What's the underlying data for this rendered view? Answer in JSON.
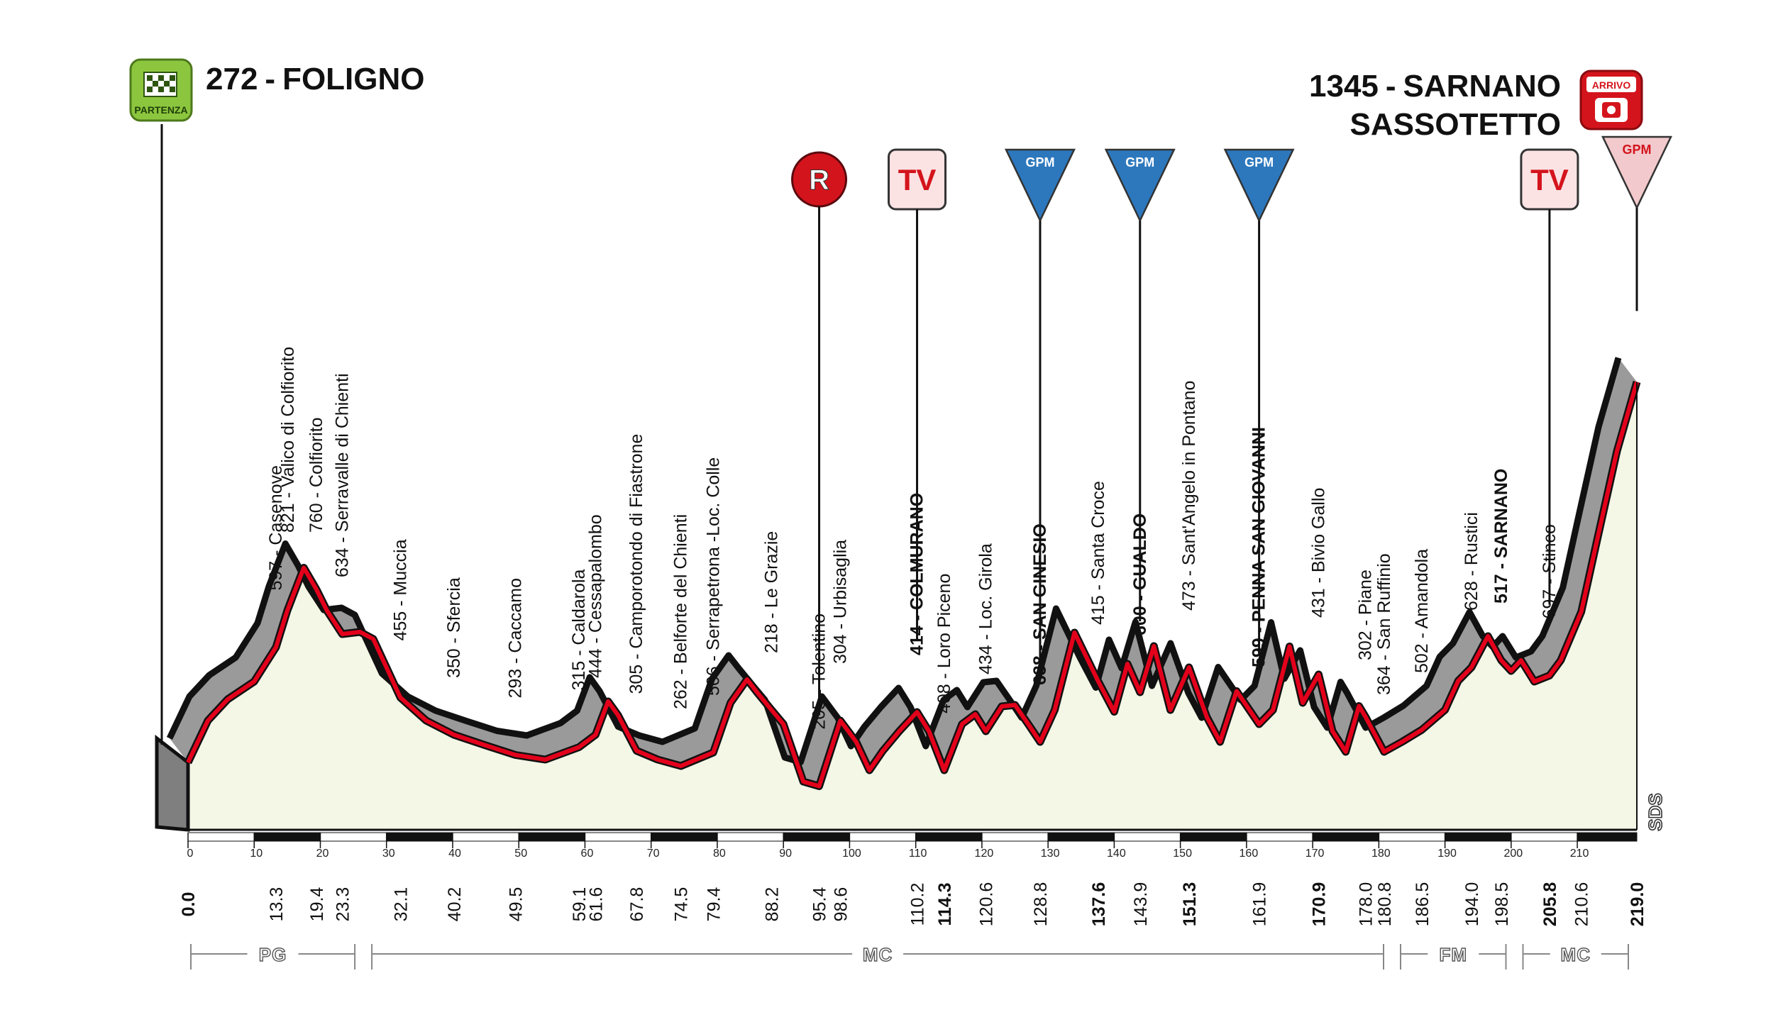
{
  "start": {
    "altitude": "272",
    "name": "FOLIGNO",
    "icon_label": "PARTENZA"
  },
  "finish": {
    "altitude": "1345",
    "name_line1": "SARNANO",
    "name_line2": "SASSOTETTO",
    "icon_label": "ARRIVO",
    "separator": "-"
  },
  "markers": [
    {
      "label": "R",
      "km": 95.4,
      "kind": "circle"
    },
    {
      "label": "TV",
      "km": 110.2,
      "kind": "rounded"
    },
    {
      "label": "GPM",
      "km": 128.8,
      "kind": "gpm-blue"
    },
    {
      "label": "GPM",
      "km": 143.9,
      "kind": "gpm-blue"
    },
    {
      "label": "GPM",
      "km": 161.9,
      "kind": "gpm-blue"
    },
    {
      "label": "TV",
      "km": 205.8,
      "kind": "rounded"
    },
    {
      "label": "GPM",
      "km": 219.0,
      "kind": "gpm-red"
    }
  ],
  "colors": {
    "route": "#e3001b",
    "profile_band": "#9a9a9a",
    "fill": "#f4f6e6",
    "gpm_blue": "#1f6fb4",
    "icon_green": "#8cc63f",
    "icon_red": "#d4141c"
  },
  "chart_data": {
    "type": "area",
    "xlabel": "",
    "ylabel": "",
    "xlim": [
      0,
      219
    ],
    "x_ticks": [
      0,
      10,
      20,
      30,
      40,
      50,
      60,
      70,
      80,
      90,
      100,
      110,
      120,
      130,
      140,
      150,
      160,
      170,
      180,
      190,
      200,
      210
    ],
    "profile": [
      {
        "km": 0,
        "alt": 272
      },
      {
        "km": 3,
        "alt": 390
      },
      {
        "km": 6,
        "alt": 450
      },
      {
        "km": 10,
        "alt": 500
      },
      {
        "km": 13.3,
        "alt": 597
      },
      {
        "km": 15,
        "alt": 700
      },
      {
        "km": 17.5,
        "alt": 821
      },
      {
        "km": 19.4,
        "alt": 760
      },
      {
        "km": 21,
        "alt": 700
      },
      {
        "km": 23.3,
        "alt": 634
      },
      {
        "km": 26,
        "alt": 640
      },
      {
        "km": 28,
        "alt": 620
      },
      {
        "km": 32.1,
        "alt": 455
      },
      {
        "km": 36,
        "alt": 390
      },
      {
        "km": 40.2,
        "alt": 350
      },
      {
        "km": 45,
        "alt": 320
      },
      {
        "km": 49.5,
        "alt": 293
      },
      {
        "km": 54,
        "alt": 280
      },
      {
        "km": 59.1,
        "alt": 315
      },
      {
        "km": 61.6,
        "alt": 350
      },
      {
        "km": 63.5,
        "alt": 444
      },
      {
        "km": 65,
        "alt": 405
      },
      {
        "km": 67.8,
        "alt": 305
      },
      {
        "km": 71,
        "alt": 280
      },
      {
        "km": 74.5,
        "alt": 262
      },
      {
        "km": 79.4,
        "alt": 300
      },
      {
        "km": 82,
        "alt": 440
      },
      {
        "km": 84.5,
        "alt": 506
      },
      {
        "km": 86,
        "alt": 470
      },
      {
        "km": 88.2,
        "alt": 420
      },
      {
        "km": 90,
        "alt": 380
      },
      {
        "km": 93,
        "alt": 218
      },
      {
        "km": 95.4,
        "alt": 205
      },
      {
        "km": 98.6,
        "alt": 390
      },
      {
        "km": 101,
        "alt": 330
      },
      {
        "km": 103,
        "alt": 250
      },
      {
        "km": 105,
        "alt": 304
      },
      {
        "km": 107.5,
        "alt": 360
      },
      {
        "km": 110.2,
        "alt": 414
      },
      {
        "km": 112,
        "alt": 360
      },
      {
        "km": 114.3,
        "alt": 250
      },
      {
        "km": 117,
        "alt": 380
      },
      {
        "km": 119,
        "alt": 408
      },
      {
        "km": 120.6,
        "alt": 360
      },
      {
        "km": 123,
        "alt": 430
      },
      {
        "km": 125,
        "alt": 434
      },
      {
        "km": 127,
        "alt": 380
      },
      {
        "km": 128.8,
        "alt": 330
      },
      {
        "km": 131,
        "alt": 420
      },
      {
        "km": 134,
        "alt": 638
      },
      {
        "km": 137.6,
        "alt": 500
      },
      {
        "km": 140,
        "alt": 415
      },
      {
        "km": 142,
        "alt": 550
      },
      {
        "km": 143.9,
        "alt": 470
      },
      {
        "km": 146,
        "alt": 600
      },
      {
        "km": 148.5,
        "alt": 420
      },
      {
        "km": 151.3,
        "alt": 540
      },
      {
        "km": 154,
        "alt": 400
      },
      {
        "km": 156,
        "alt": 330
      },
      {
        "km": 158.5,
        "alt": 473
      },
      {
        "km": 161.9,
        "alt": 380
      },
      {
        "km": 164,
        "alt": 420
      },
      {
        "km": 166.5,
        "alt": 599
      },
      {
        "km": 168.5,
        "alt": 440
      },
      {
        "km": 170.9,
        "alt": 520
      },
      {
        "km": 173,
        "alt": 360
      },
      {
        "km": 175,
        "alt": 302
      },
      {
        "km": 177,
        "alt": 431
      },
      {
        "km": 178,
        "alt": 400
      },
      {
        "km": 180.8,
        "alt": 302
      },
      {
        "km": 183.5,
        "alt": 330
      },
      {
        "km": 186.5,
        "alt": 364
      },
      {
        "km": 190,
        "alt": 420
      },
      {
        "km": 192,
        "alt": 502
      },
      {
        "km": 194,
        "alt": 540
      },
      {
        "km": 196.5,
        "alt": 628
      },
      {
        "km": 198.5,
        "alt": 560
      },
      {
        "km": 200,
        "alt": 530
      },
      {
        "km": 201.5,
        "alt": 560
      },
      {
        "km": 203.5,
        "alt": 500
      },
      {
        "km": 205.8,
        "alt": 517
      },
      {
        "km": 207.5,
        "alt": 560
      },
      {
        "km": 210.6,
        "alt": 697
      },
      {
        "km": 213,
        "alt": 900
      },
      {
        "km": 216,
        "alt": 1150
      },
      {
        "km": 219,
        "alt": 1345
      }
    ],
    "km_labels": [
      {
        "km": 0.0,
        "text": "0.0",
        "bold": true
      },
      {
        "km": 13.3,
        "text": "13.3"
      },
      {
        "km": 19.4,
        "text": "19.4"
      },
      {
        "km": 23.3,
        "text": "23.3"
      },
      {
        "km": 32.1,
        "text": "32.1"
      },
      {
        "km": 40.2,
        "text": "40.2"
      },
      {
        "km": 49.5,
        "text": "49.5"
      },
      {
        "km": 59.1,
        "text": "59.1"
      },
      {
        "km": 61.6,
        "text": "61.6"
      },
      {
        "km": 67.8,
        "text": "67.8"
      },
      {
        "km": 74.5,
        "text": "74.5"
      },
      {
        "km": 79.4,
        "text": "79.4"
      },
      {
        "km": 88.2,
        "text": "88.2"
      },
      {
        "km": 95.4,
        "text": "95.4"
      },
      {
        "km": 98.6,
        "text": "98.6"
      },
      {
        "km": 110.2,
        "text": "110.2"
      },
      {
        "km": 114.3,
        "text": "114.3",
        "bold": true
      },
      {
        "km": 120.6,
        "text": "120.6"
      },
      {
        "km": 128.8,
        "text": "128.8"
      },
      {
        "km": 137.6,
        "text": "137.6",
        "bold": true
      },
      {
        "km": 143.9,
        "text": "143.9"
      },
      {
        "km": 151.3,
        "text": "151.3",
        "bold": true
      },
      {
        "km": 161.9,
        "text": "161.9"
      },
      {
        "km": 170.9,
        "text": "170.9",
        "bold": true
      },
      {
        "km": 178.0,
        "text": "178.0"
      },
      {
        "km": 180.8,
        "text": "180.8"
      },
      {
        "km": 186.5,
        "text": "186.5"
      },
      {
        "km": 194.0,
        "text": "194.0"
      },
      {
        "km": 198.5,
        "text": "198.5"
      },
      {
        "km": 205.8,
        "text": "205.8",
        "bold": true
      },
      {
        "km": 210.6,
        "text": "210.6"
      },
      {
        "km": 219.0,
        "text": "219.0",
        "bold": true
      }
    ],
    "waypoints": [
      {
        "km": 13.3,
        "text": "597 - Casenove"
      },
      {
        "km": 19.4,
        "text": "821 - Valico di Colfiorito",
        "line_km": 13.3
      },
      {
        "km": 19.4,
        "text": "760 - Colfiorito"
      },
      {
        "km": 23.3,
        "text": "634 - Serravalle di Chienti"
      },
      {
        "km": 32.1,
        "text": "455 - Muccia"
      },
      {
        "km": 40.2,
        "text": "350 - Sfercia"
      },
      {
        "km": 49.5,
        "text": "293 - Caccamo"
      },
      {
        "km": 59.1,
        "text": "315 - Caldarola"
      },
      {
        "km": 61.6,
        "text": "444 - Cessapalombo"
      },
      {
        "km": 67.8,
        "text": "305 - Camporotondo di Fiastrone"
      },
      {
        "km": 74.5,
        "text": "262 - Belforte del Chienti"
      },
      {
        "km": 79.4,
        "text": "506 - Serrapetrona -Loc. Colle"
      },
      {
        "km": 88.2,
        "text": "218 - Le Grazie"
      },
      {
        "km": 95.4,
        "text": "205 - Tolentino"
      },
      {
        "km": 98.6,
        "text": "304 - Urbisaglia"
      },
      {
        "km": 110.2,
        "text": "414 - COLMURANO",
        "bold": true
      },
      {
        "km": 114.3,
        "text": "408 - Loro Piceno"
      },
      {
        "km": 120.6,
        "text": "434 - Loc. Girola"
      },
      {
        "km": 128.8,
        "text": "638 - SAN GINESIO",
        "bold": true
      },
      {
        "km": 137.6,
        "text": "415 - Santa Croce"
      },
      {
        "km": 143.9,
        "text": "600 - GUALDO",
        "bold": true
      },
      {
        "km": 151.3,
        "text": "473 - Sant'Angelo in Pontano"
      },
      {
        "km": 161.9,
        "text": "599 - PENNA SAN GIOVANNI",
        "bold": true
      },
      {
        "km": 170.9,
        "text": "431 - Bivio Gallo"
      },
      {
        "km": 178.0,
        "text": "302 - Piane"
      },
      {
        "km": 180.8,
        "text": "364 - San Ruffinio"
      },
      {
        "km": 186.5,
        "text": "502 - Amandola"
      },
      {
        "km": 194.0,
        "text": "628 - Rustici"
      },
      {
        "km": 198.5,
        "text": "517 - SARNANO",
        "bold": true
      },
      {
        "km": 205.8,
        "text": "697 - Stinco"
      }
    ],
    "regions": [
      {
        "label": "PG",
        "from": 0,
        "to": 26.5
      },
      {
        "label": "MC",
        "from": 26.5,
        "to": 182.0
      },
      {
        "label": "FM",
        "from": 182.0,
        "to": 200.5
      },
      {
        "label": "MC",
        "from": 200.5,
        "to": 219.0
      }
    ],
    "brand": "SDS"
  }
}
